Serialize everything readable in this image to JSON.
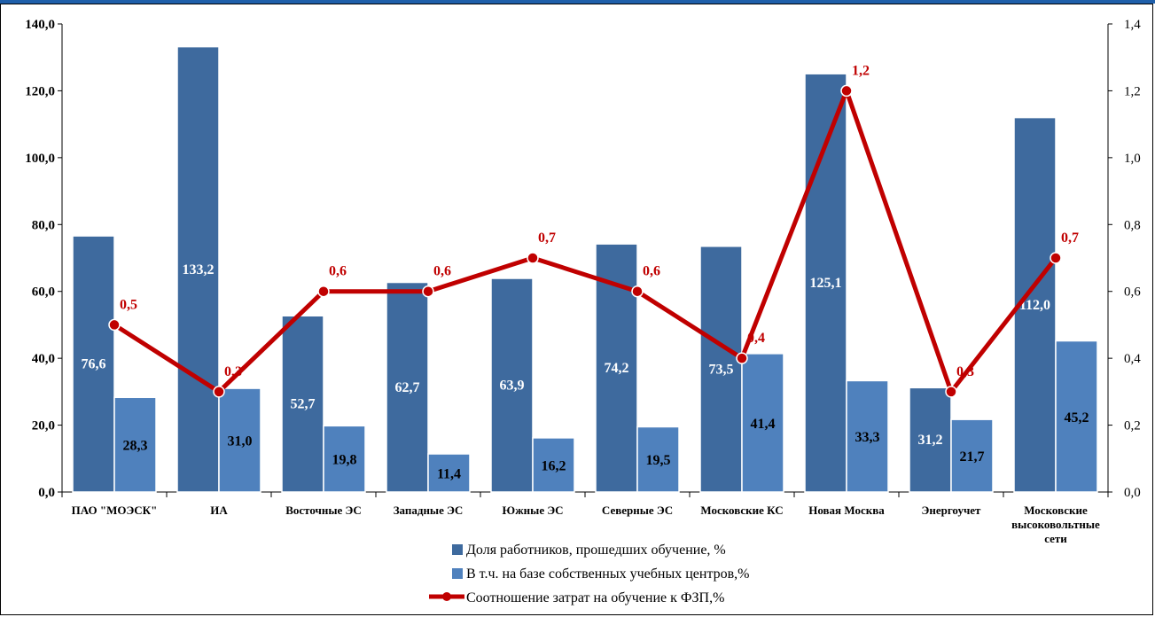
{
  "chart_data": {
    "type": "bar",
    "categories": [
      [
        "ПАО \"МОЭСК\""
      ],
      [
        "ИА"
      ],
      [
        "Восточные ЭС"
      ],
      [
        "Западные ЭС"
      ],
      [
        "Южные ЭС"
      ],
      [
        "Северные ЭС"
      ],
      [
        "Московские КС"
      ],
      [
        "Новая Москва"
      ],
      [
        "Энергоучет"
      ],
      [
        "Московские",
        "высоковольтные",
        "сети"
      ]
    ],
    "series": [
      {
        "name": "Доля работников, прошедших обучение, %",
        "kind": "bar",
        "axis": "left",
        "color": "#3e6a9e",
        "values": [
          76.6,
          133.2,
          52.7,
          62.7,
          63.9,
          74.2,
          73.5,
          125.1,
          31.2,
          112.0
        ],
        "labels": [
          "76,6",
          "133,2",
          "52,7",
          "62,7",
          "63,9",
          "74,2",
          "73,5",
          "125,1",
          "31,2",
          "112,0"
        ]
      },
      {
        "name": "В т.ч. на базе собственных учебных центров,%",
        "kind": "bar",
        "axis": "left",
        "color": "#4f81bd",
        "values": [
          28.3,
          31.0,
          19.8,
          11.4,
          16.2,
          19.5,
          41.4,
          33.3,
          21.7,
          45.2
        ],
        "labels": [
          "28,3",
          "31,0",
          "19,8",
          "11,4",
          "16,2",
          "19,5",
          "41,4",
          "33,3",
          "21,7",
          "45,2"
        ]
      },
      {
        "name": "Соотношение затрат на обучение к ФЗП,%",
        "kind": "line",
        "axis": "right",
        "color": "#c00000",
        "values": [
          0.5,
          0.3,
          0.6,
          0.6,
          0.7,
          0.6,
          0.4,
          1.2,
          0.3,
          0.7
        ],
        "labels": [
          "0,5",
          "0,3",
          "0,6",
          "0,6",
          "0,7",
          "0,6",
          "0,4",
          "1,2",
          "0,3",
          "0,7"
        ]
      }
    ],
    "y_left": {
      "ylim": [
        0,
        140
      ],
      "ticks": [
        0,
        20,
        40,
        60,
        80,
        100,
        120,
        140
      ],
      "tick_labels": [
        "0,0",
        "20,0",
        "40,0",
        "60,0",
        "80,0",
        "100,0",
        "120,0",
        "140,0"
      ]
    },
    "y_right": {
      "ylim": [
        0,
        1.4
      ],
      "ticks": [
        0,
        0.2,
        0.4,
        0.6,
        0.8,
        1.0,
        1.2,
        1.4
      ],
      "tick_labels": [
        "0,0",
        "0,2",
        "0,4",
        "0,6",
        "0,8",
        "1,0",
        "1,2",
        "1,4"
      ]
    },
    "grid": false,
    "legend_position": "bottom"
  }
}
